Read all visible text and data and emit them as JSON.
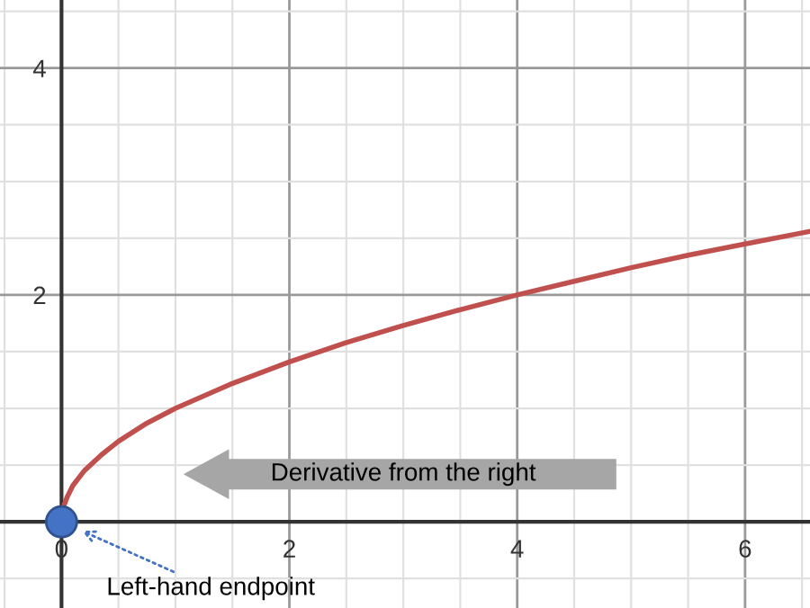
{
  "chart_data": {
    "type": "line",
    "x": [
      0,
      0.02,
      0.05,
      0.1,
      0.2,
      0.35,
      0.5,
      0.75,
      1,
      1.5,
      2,
      2.5,
      3,
      3.5,
      4,
      4.5,
      5,
      5.5,
      6,
      6.57
    ],
    "series": [
      {
        "color": "#c0504d",
        "values": [
          0,
          0.14,
          0.22,
          0.32,
          0.45,
          0.59,
          0.71,
          0.87,
          1,
          1.22,
          1.41,
          1.58,
          1.73,
          1.87,
          2,
          2.12,
          2.24,
          2.35,
          2.45,
          2.56
        ]
      },
      {
        "type": "scatter",
        "color": "#4472c4",
        "x": [
          0
        ],
        "values": [
          0
        ],
        "marker": "circle"
      }
    ],
    "xlim": [
      -0.54,
      6.57
    ],
    "ylim": [
      -0.76,
      4.6
    ],
    "xticks": [
      {
        "value": -0.5,
        "label": null
      },
      0,
      {
        "value": 0.5,
        "label": null
      },
      {
        "value": 1,
        "label": null
      },
      {
        "value": 1.5,
        "label": null
      },
      2,
      {
        "value": 2.5,
        "label": null
      },
      {
        "value": 3,
        "label": null
      },
      {
        "value": 3.5,
        "label": null
      },
      4,
      {
        "value": 4.5,
        "label": null
      },
      {
        "value": 5,
        "label": null
      },
      {
        "value": 5.5,
        "label": null
      },
      6,
      {
        "value": 6.5,
        "label": null
      }
    ],
    "yticks": [
      {
        "value": -0.5,
        "label": null
      },
      {
        "value": 0.5,
        "label": null
      },
      {
        "value": 1,
        "label": null
      },
      {
        "value": 1.5,
        "label": null
      },
      2,
      {
        "value": 2.5,
        "label": null
      },
      {
        "value": 3,
        "label": null
      },
      {
        "value": 3.5,
        "label": null
      },
      4,
      {
        "value": 4.5,
        "label": null
      }
    ],
    "grid": true,
    "annotations": [
      {
        "text": "Left-hand endpoint",
        "x": 0,
        "y": 0
      },
      "Derivative from the right"
    ]
  }
}
